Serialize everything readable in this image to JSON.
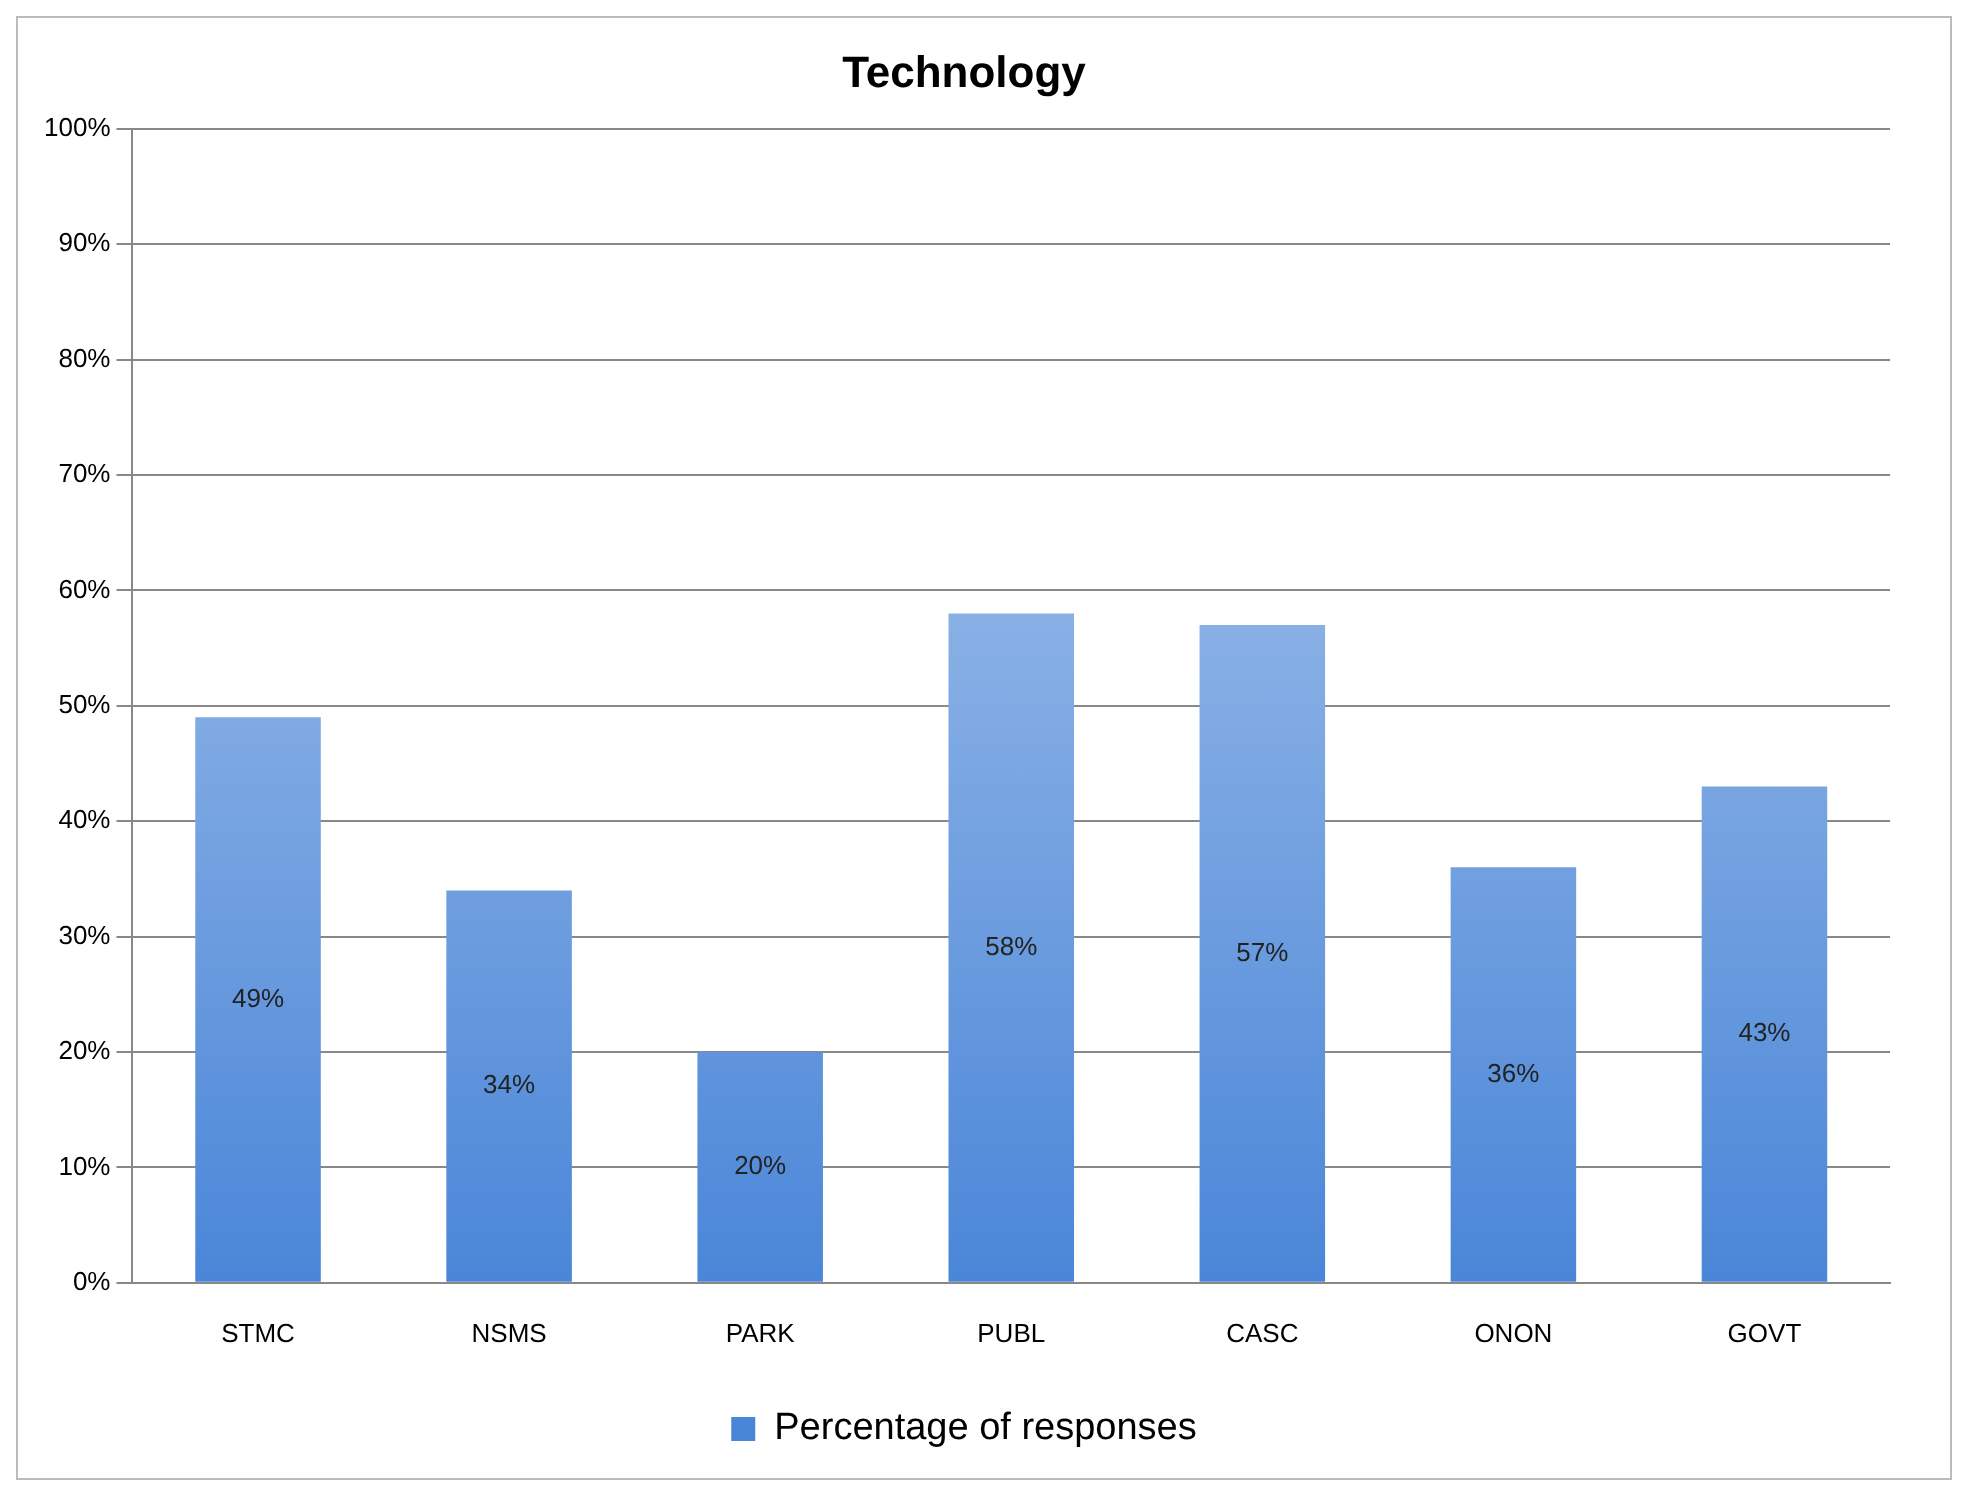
{
  "chart_data": {
    "type": "bar",
    "title": "Technology",
    "categories": [
      "STMC",
      "NSMS",
      "PARK",
      "PUBL",
      "CASC",
      "ONON",
      "GOVT"
    ],
    "series": [
      {
        "name": "Percentage of responses",
        "color": "#4a86d8",
        "values": [
          49,
          34,
          20,
          58,
          57,
          36,
          43
        ],
        "value_labels": [
          "49%",
          "34%",
          "20%",
          "58%",
          "57%",
          "36%",
          "43%"
        ]
      }
    ],
    "ylim": [
      0,
      100
    ],
    "yticks": [
      {
        "value": 0,
        "label": "0%"
      },
      {
        "value": 10,
        "label": "10%"
      },
      {
        "value": 20,
        "label": "20%"
      },
      {
        "value": 30,
        "label": "30%"
      },
      {
        "value": 40,
        "label": "40%"
      },
      {
        "value": 50,
        "label": "50%"
      },
      {
        "value": 60,
        "label": "60%"
      },
      {
        "value": 70,
        "label": "70%"
      },
      {
        "value": 80,
        "label": "80%"
      },
      {
        "value": 90,
        "label": "90%"
      },
      {
        "value": 100,
        "label": "100%"
      }
    ],
    "grid": "y",
    "legend": "bottom"
  }
}
